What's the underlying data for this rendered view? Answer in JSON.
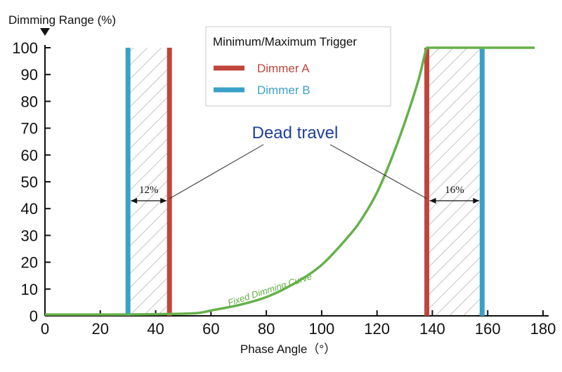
{
  "chart_data": {
    "type": "line",
    "ylabel": "Dimming Range (%)",
    "xlabel": "Phase Angle（°）",
    "xlim": [
      0,
      180
    ],
    "ylim": [
      0,
      100
    ],
    "x_ticks": [
      0,
      20,
      40,
      60,
      80,
      100,
      120,
      140,
      160,
      180
    ],
    "y_ticks": [
      0,
      10,
      20,
      30,
      40,
      50,
      60,
      70,
      80,
      90,
      100
    ],
    "grid": false,
    "legend": {
      "title": "Minimum/Maximum Trigger",
      "placement": "top-center",
      "entries": [
        {
          "name": "Dimmer A",
          "color": "#c0453a"
        },
        {
          "name": "Dimmer B",
          "color": "#3aa0c8"
        }
      ]
    },
    "series": [
      {
        "name": "Fixed Dimming Curve",
        "color": "#66b04a",
        "x": [
          0,
          30,
          45,
          55,
          60,
          70,
          80,
          90,
          100,
          110,
          115,
          120,
          125,
          130,
          135,
          138,
          140,
          150,
          160,
          177
        ],
        "y": [
          0.5,
          0.5,
          0.7,
          1,
          2,
          4,
          7,
          12,
          19,
          30,
          37,
          46,
          58,
          72,
          88,
          100,
          100,
          100,
          100,
          100
        ]
      }
    ],
    "vertical_lines": [
      {
        "dimmer": "Dimmer B",
        "x": 30,
        "color": "#3aa0c8"
      },
      {
        "dimmer": "Dimmer A",
        "x": 45,
        "color": "#c0453a"
      },
      {
        "dimmer": "Dimmer A",
        "x": 138,
        "color": "#c0453a"
      },
      {
        "dimmer": "Dimmer B",
        "x": 158,
        "color": "#3aa0c8"
      }
    ],
    "dead_travel": {
      "label": "Dead travel",
      "regions": [
        {
          "x_start": 30,
          "x_end": 45,
          "label": "12%"
        },
        {
          "x_start": 138,
          "x_end": 158,
          "label": "16%"
        }
      ]
    }
  }
}
